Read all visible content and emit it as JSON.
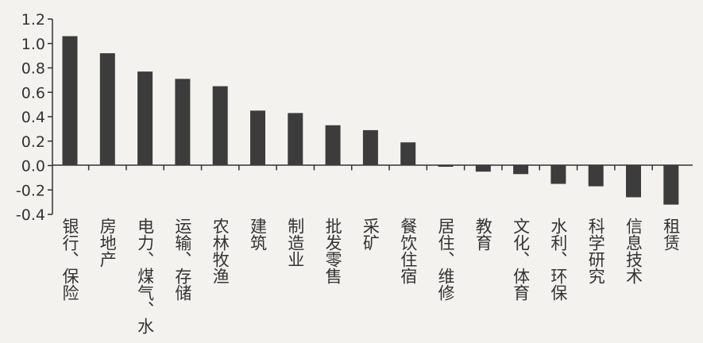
{
  "chart_data": {
    "type": "bar",
    "categories": [
      "银行、保险",
      "房地产",
      "电力、煤气、水",
      "运输、存储",
      "农林牧渔",
      "建筑",
      "制造业",
      "批发零售",
      "采矿",
      "餐饮住宿",
      "居住、维修",
      "教育",
      "文化、体育",
      "水利、环保",
      "科学研究",
      "信息技术",
      "租赁"
    ],
    "values": [
      1.06,
      0.92,
      0.77,
      0.71,
      0.65,
      0.45,
      0.43,
      0.33,
      0.29,
      0.19,
      -0.01,
      -0.05,
      -0.07,
      -0.15,
      -0.17,
      -0.26,
      -0.32
    ],
    "y_ticks": [
      "1.2",
      "1.0",
      "0.8",
      "0.6",
      "0.4",
      "0.2",
      "0.0",
      "-0.2",
      "-0.4"
    ],
    "ylim": [
      -0.4,
      1.2
    ],
    "title": "",
    "xlabel": "",
    "ylabel": "",
    "grid": false,
    "colors": {
      "bar": "#3c3c3c",
      "axis": "#333333",
      "background": "#f4f2ee"
    }
  }
}
